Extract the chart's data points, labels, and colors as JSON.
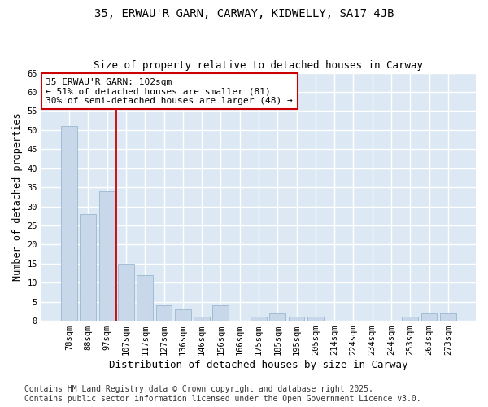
{
  "title1": "35, ERWAU'R GARN, CARWAY, KIDWELLY, SA17 4JB",
  "title2": "Size of property relative to detached houses in Carway",
  "xlabel": "Distribution of detached houses by size in Carway",
  "ylabel": "Number of detached properties",
  "categories": [
    "78sqm",
    "88sqm",
    "97sqm",
    "107sqm",
    "117sqm",
    "127sqm",
    "136sqm",
    "146sqm",
    "156sqm",
    "166sqm",
    "175sqm",
    "185sqm",
    "195sqm",
    "205sqm",
    "214sqm",
    "224sqm",
    "234sqm",
    "244sqm",
    "253sqm",
    "263sqm",
    "273sqm"
  ],
  "values": [
    51,
    28,
    34,
    15,
    12,
    4,
    3,
    1,
    4,
    0,
    1,
    2,
    1,
    1,
    0,
    0,
    0,
    0,
    1,
    2,
    2
  ],
  "bar_color": "#c8d8ea",
  "bar_edge_color": "#9ab8d0",
  "vline_x": 2.5,
  "vline_color": "#cc0000",
  "annotation_text": "35 ERWAU'R GARN: 102sqm\n← 51% of detached houses are smaller (81)\n30% of semi-detached houses are larger (48) →",
  "annotation_box_color": "#ffffff",
  "annotation_box_edge": "#cc0000",
  "ylim": [
    0,
    65
  ],
  "yticks": [
    0,
    5,
    10,
    15,
    20,
    25,
    30,
    35,
    40,
    45,
    50,
    55,
    60,
    65
  ],
  "footnote": "Contains HM Land Registry data © Crown copyright and database right 2025.\nContains public sector information licensed under the Open Government Licence v3.0.",
  "fig_bg_color": "#ffffff",
  "plot_bg_color": "#dce9f5",
  "grid_color": "#ffffff",
  "title_fontsize": 10,
  "subtitle_fontsize": 9,
  "annotation_fontsize": 8,
  "tick_fontsize": 7.5,
  "ylabel_fontsize": 8.5,
  "xlabel_fontsize": 9,
  "footnote_fontsize": 7
}
